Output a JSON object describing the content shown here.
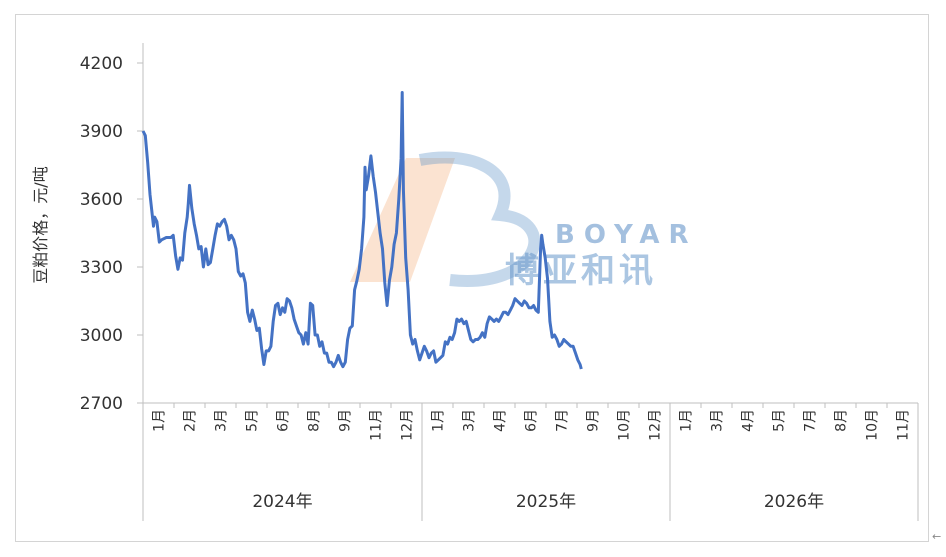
{
  "chart_data": {
    "type": "line",
    "ylabel": "豆粕价格，元/吨",
    "ylim": [
      2700,
      4200
    ],
    "yticks": [
      "4200",
      "3900",
      "3600",
      "3300",
      "3000",
      "2700"
    ],
    "years": [
      {
        "label": "2024年",
        "months": [
          "1月",
          "2月",
          "3月",
          "5月",
          "6月",
          "8月",
          "9月",
          "11月",
          "12月"
        ]
      },
      {
        "label": "2025年",
        "months": [
          "1月",
          "3月",
          "4月",
          "6月",
          "7月",
          "9月",
          "10月",
          "12月"
        ]
      },
      {
        "label": "2026年",
        "months": [
          "1月",
          "3月",
          "4月",
          "5月",
          "7月",
          "8月",
          "10月",
          "11月"
        ]
      }
    ],
    "series": [
      {
        "color": "#4472c4",
        "points": [
          [
            0.0,
            3900
          ],
          [
            0.1,
            3880
          ],
          [
            0.2,
            3760
          ],
          [
            0.3,
            3620
          ],
          [
            0.45,
            3480
          ],
          [
            0.5,
            3520
          ],
          [
            0.6,
            3500
          ],
          [
            0.7,
            3410
          ],
          [
            0.8,
            3420
          ],
          [
            1.0,
            3430
          ],
          [
            1.2,
            3430
          ],
          [
            1.3,
            3440
          ],
          [
            1.4,
            3350
          ],
          [
            1.5,
            3290
          ],
          [
            1.6,
            3340
          ],
          [
            1.7,
            3330
          ],
          [
            1.8,
            3450
          ],
          [
            1.9,
            3520
          ],
          [
            1.95,
            3580
          ],
          [
            2.0,
            3660
          ],
          [
            2.1,
            3560
          ],
          [
            2.2,
            3490
          ],
          [
            2.3,
            3440
          ],
          [
            2.4,
            3380
          ],
          [
            2.5,
            3390
          ],
          [
            2.6,
            3300
          ],
          [
            2.7,
            3380
          ],
          [
            2.8,
            3310
          ],
          [
            2.9,
            3320
          ],
          [
            3.0,
            3380
          ],
          [
            3.1,
            3440
          ],
          [
            3.2,
            3490
          ],
          [
            3.3,
            3480
          ],
          [
            3.4,
            3500
          ],
          [
            3.5,
            3510
          ],
          [
            3.6,
            3480
          ],
          [
            3.7,
            3420
          ],
          [
            3.8,
            3440
          ],
          [
            3.9,
            3420
          ],
          [
            4.0,
            3380
          ],
          [
            4.1,
            3280
          ],
          [
            4.2,
            3260
          ],
          [
            4.3,
            3270
          ],
          [
            4.4,
            3230
          ],
          [
            4.5,
            3100
          ],
          [
            4.6,
            3060
          ],
          [
            4.7,
            3110
          ],
          [
            4.8,
            3070
          ],
          [
            4.9,
            3020
          ],
          [
            5.0,
            3030
          ],
          [
            5.1,
            2940
          ],
          [
            5.2,
            2870
          ],
          [
            5.3,
            2930
          ],
          [
            5.4,
            2930
          ],
          [
            5.5,
            2950
          ],
          [
            5.6,
            3060
          ],
          [
            5.7,
            3130
          ],
          [
            5.8,
            3140
          ],
          [
            5.9,
            3090
          ],
          [
            6.0,
            3120
          ],
          [
            6.1,
            3100
          ],
          [
            6.2,
            3160
          ],
          [
            6.3,
            3150
          ],
          [
            6.4,
            3120
          ],
          [
            6.5,
            3070
          ],
          [
            6.6,
            3040
          ],
          [
            6.7,
            3010
          ],
          [
            6.8,
            3000
          ],
          [
            6.9,
            2960
          ],
          [
            7.0,
            3010
          ],
          [
            7.1,
            2960
          ],
          [
            7.2,
            3140
          ],
          [
            7.3,
            3130
          ],
          [
            7.4,
            3000
          ],
          [
            7.5,
            3000
          ],
          [
            7.6,
            2950
          ],
          [
            7.7,
            2970
          ],
          [
            7.8,
            2920
          ],
          [
            7.9,
            2920
          ],
          [
            8.0,
            2880
          ],
          [
            8.1,
            2880
          ],
          [
            8.2,
            2860
          ],
          [
            8.3,
            2880
          ],
          [
            8.4,
            2910
          ],
          [
            8.5,
            2880
          ],
          [
            8.6,
            2860
          ],
          [
            8.7,
            2880
          ],
          [
            8.8,
            2980
          ],
          [
            8.9,
            3030
          ],
          [
            9.0,
            3040
          ],
          [
            9.1,
            3200
          ],
          [
            9.2,
            3240
          ],
          [
            9.3,
            3290
          ],
          [
            9.4,
            3380
          ],
          [
            9.5,
            3520
          ],
          [
            9.55,
            3740
          ],
          [
            9.6,
            3640
          ],
          [
            9.7,
            3700
          ],
          [
            9.8,
            3790
          ],
          [
            9.9,
            3700
          ],
          [
            10.0,
            3630
          ],
          [
            10.1,
            3540
          ],
          [
            10.2,
            3450
          ],
          [
            10.3,
            3380
          ],
          [
            10.4,
            3230
          ],
          [
            10.5,
            3130
          ],
          [
            10.6,
            3240
          ],
          [
            10.7,
            3300
          ],
          [
            10.8,
            3400
          ],
          [
            10.9,
            3450
          ],
          [
            11.0,
            3600
          ],
          [
            11.1,
            3780
          ],
          [
            11.15,
            4070
          ],
          [
            11.2,
            3640
          ],
          [
            11.3,
            3340
          ],
          [
            11.4,
            3200
          ],
          [
            11.5,
            3000
          ],
          [
            11.6,
            2960
          ],
          [
            11.7,
            2980
          ],
          [
            11.8,
            2930
          ],
          [
            11.9,
            2890
          ],
          [
            12.0,
            2920
          ],
          [
            12.1,
            2950
          ],
          [
            12.2,
            2930
          ],
          [
            12.3,
            2900
          ],
          [
            12.4,
            2920
          ],
          [
            12.5,
            2930
          ],
          [
            12.6,
            2880
          ],
          [
            12.7,
            2890
          ],
          [
            12.8,
            2900
          ],
          [
            12.9,
            2910
          ],
          [
            13.0,
            2970
          ],
          [
            13.1,
            2960
          ],
          [
            13.2,
            2990
          ],
          [
            13.3,
            2980
          ],
          [
            13.4,
            3010
          ],
          [
            13.5,
            3070
          ],
          [
            13.6,
            3060
          ],
          [
            13.7,
            3070
          ],
          [
            13.8,
            3050
          ],
          [
            13.9,
            3060
          ],
          [
            14.0,
            3020
          ],
          [
            14.1,
            2980
          ],
          [
            14.2,
            2970
          ],
          [
            14.3,
            2980
          ],
          [
            14.4,
            2980
          ],
          [
            14.5,
            2990
          ],
          [
            14.6,
            3010
          ],
          [
            14.7,
            2990
          ],
          [
            14.8,
            3050
          ],
          [
            14.9,
            3080
          ],
          [
            15.0,
            3070
          ],
          [
            15.1,
            3060
          ],
          [
            15.2,
            3070
          ],
          [
            15.3,
            3060
          ],
          [
            15.4,
            3080
          ],
          [
            15.5,
            3100
          ],
          [
            15.6,
            3100
          ],
          [
            15.7,
            3090
          ],
          [
            15.8,
            3110
          ],
          [
            15.9,
            3130
          ],
          [
            16.0,
            3160
          ],
          [
            16.1,
            3150
          ],
          [
            16.2,
            3140
          ],
          [
            16.3,
            3130
          ],
          [
            16.4,
            3150
          ],
          [
            16.5,
            3140
          ],
          [
            16.6,
            3120
          ],
          [
            16.7,
            3120
          ],
          [
            16.8,
            3130
          ],
          [
            16.9,
            3110
          ],
          [
            17.0,
            3100
          ],
          [
            17.1,
            3380
          ],
          [
            17.15,
            3440
          ],
          [
            17.2,
            3400
          ],
          [
            17.3,
            3340
          ],
          [
            17.4,
            3250
          ],
          [
            17.5,
            3060
          ],
          [
            17.6,
            2990
          ],
          [
            17.7,
            3000
          ],
          [
            17.8,
            2980
          ],
          [
            17.9,
            2950
          ],
          [
            18.0,
            2960
          ],
          [
            18.1,
            2980
          ],
          [
            18.2,
            2970
          ],
          [
            18.3,
            2960
          ],
          [
            18.4,
            2950
          ],
          [
            18.5,
            2950
          ],
          [
            18.6,
            2920
          ],
          [
            18.7,
            2890
          ],
          [
            18.8,
            2870
          ],
          [
            18.85,
            2850
          ]
        ]
      }
    ]
  },
  "watermark": {
    "latin": "BOYAR",
    "cn": "博亚和讯"
  },
  "corner_glyph": "←"
}
